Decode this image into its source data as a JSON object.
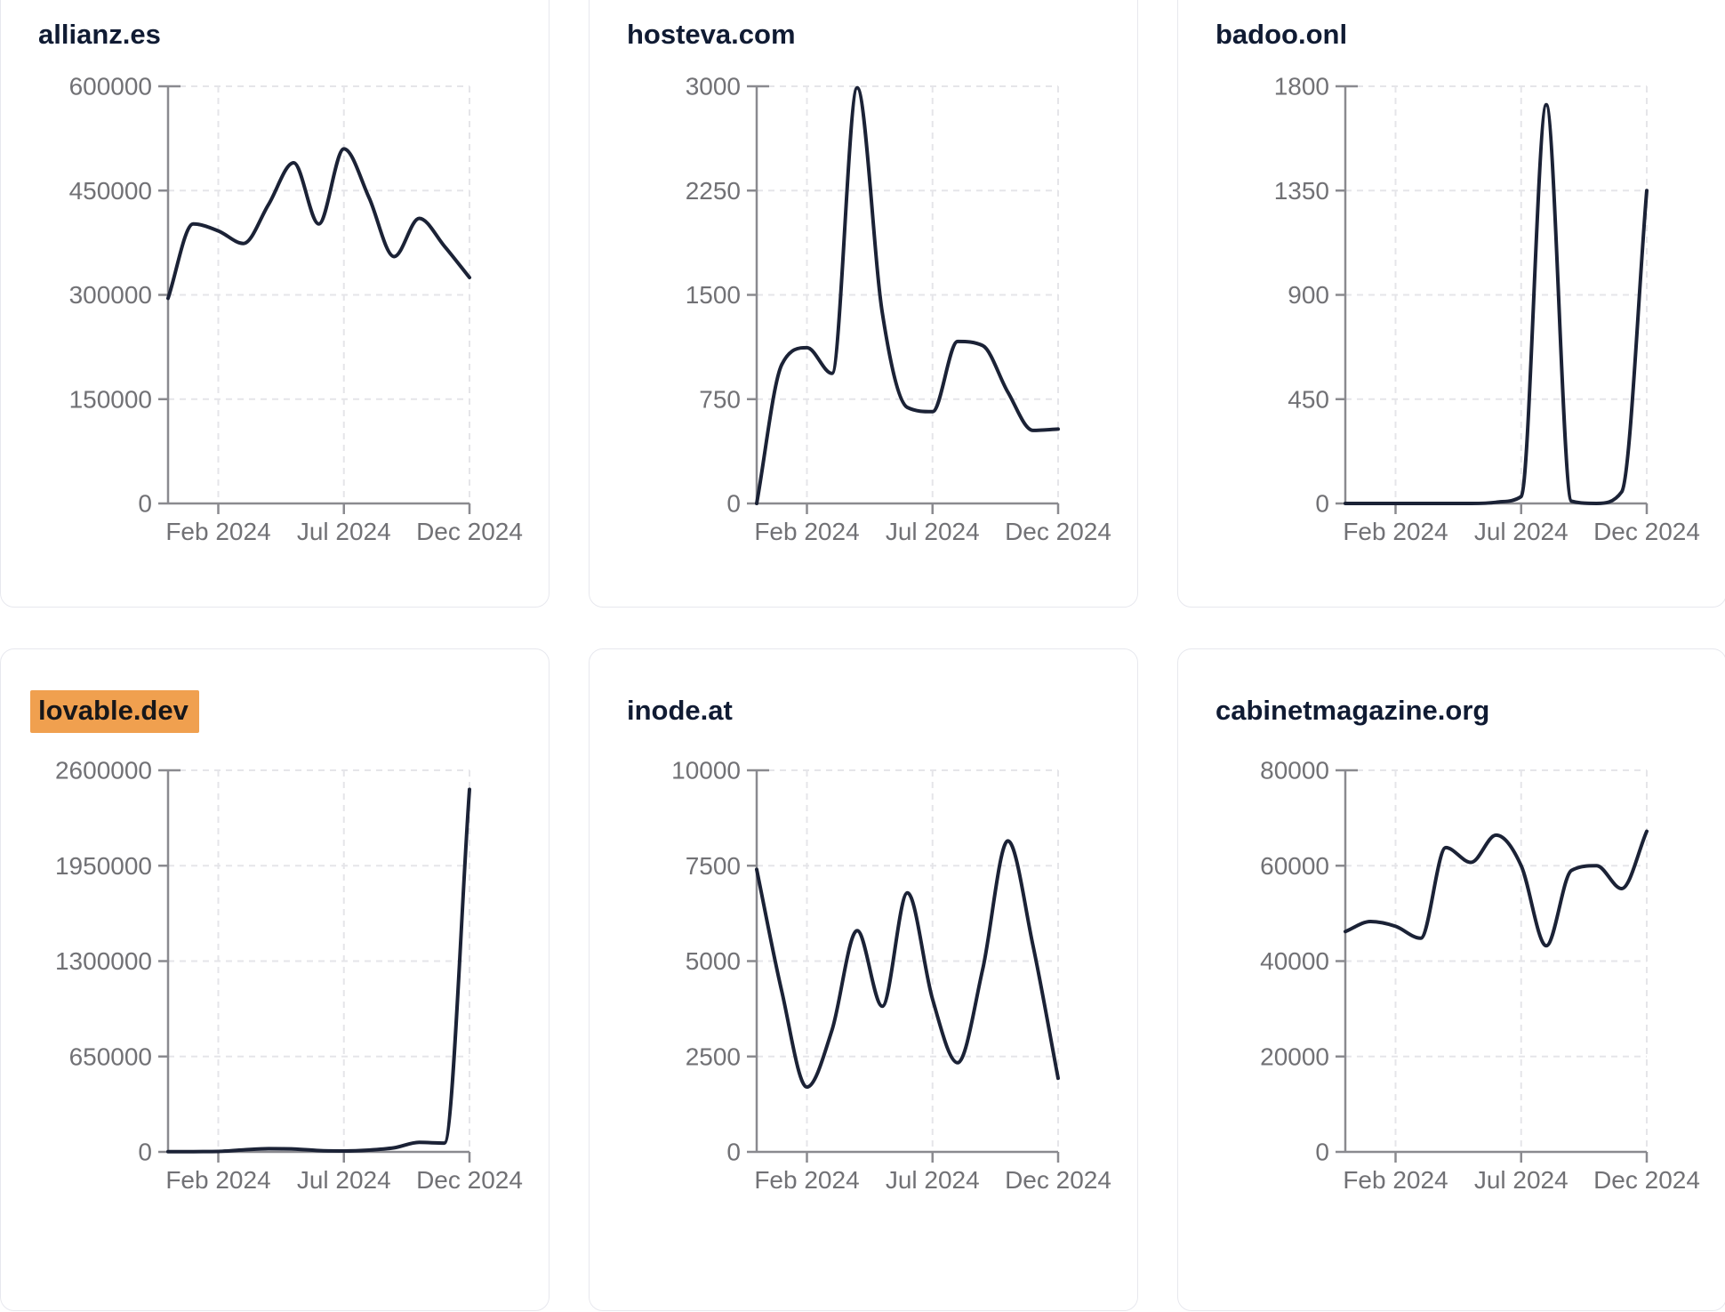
{
  "theme": {
    "background": "#ffffff",
    "card_border_color": "#e7e8ee",
    "title_color": "#101b33",
    "highlight_color": "#f0a04f",
    "highlight_text_color": "#17171a",
    "line_color": "#1b2236",
    "axis_color": "#8a8a8f",
    "tick_label_color": "#717175",
    "gridline_color": "#e5e5e9"
  },
  "chart_data": [
    {
      "type": "line",
      "title": "allianz.es",
      "highlighted": false,
      "x": [
        "Dec 2023",
        "Jan 2024",
        "Feb 2024",
        "Mar 2024",
        "Apr 2024",
        "May 2024",
        "Jun 2024",
        "Jul 2024",
        "Aug 2024",
        "Sep 2024",
        "Oct 2024",
        "Nov 2024",
        "Dec 2024"
      ],
      "values": [
        295000,
        402000,
        392000,
        374000,
        430000,
        490000,
        402000,
        510000,
        440000,
        355000,
        410000,
        370000,
        325000
      ],
      "y_ticks": [
        0,
        150000,
        300000,
        450000,
        600000
      ],
      "ylim": [
        0,
        600000
      ],
      "x_tick_labels": [
        "Feb 2024",
        "Jul 2024",
        "Dec 2024"
      ],
      "x_tick_indices": [
        2,
        7,
        12
      ],
      "grid": true,
      "legend": "none"
    },
    {
      "type": "line",
      "title": "hosteva.com",
      "highlighted": false,
      "x": [
        "Dec 2023",
        "Jan 2024",
        "Feb 2024",
        "Mar 2024",
        "Apr 2024",
        "May 2024",
        "Jun 2024",
        "Jul 2024",
        "Aug 2024",
        "Sep 2024",
        "Oct 2024",
        "Nov 2024",
        "Dec 2024"
      ],
      "values": [
        0,
        1000,
        1120,
        935,
        2990,
        1370,
        690,
        660,
        1165,
        1135,
        800,
        525,
        535
      ],
      "y_ticks": [
        0,
        750,
        1500,
        2250,
        3000
      ],
      "ylim": [
        0,
        3000
      ],
      "x_tick_labels": [
        "Feb 2024",
        "Jul 2024",
        "Dec 2024"
      ],
      "x_tick_indices": [
        2,
        7,
        12
      ],
      "grid": true,
      "legend": "none"
    },
    {
      "type": "line",
      "title": "badoo.onl",
      "highlighted": false,
      "x": [
        "Dec 2023",
        "Jan 2024",
        "Feb 2024",
        "Mar 2024",
        "Apr 2024",
        "May 2024",
        "Jun 2024",
        "Jul 2024",
        "Aug 2024",
        "Sep 2024",
        "Oct 2024",
        "Nov 2024",
        "Dec 2024"
      ],
      "values": [
        0,
        0,
        0,
        0,
        0,
        0,
        5,
        30,
        1720,
        10,
        0,
        50,
        1350
      ],
      "y_ticks": [
        0,
        450,
        900,
        1350,
        1800
      ],
      "ylim": [
        0,
        1800
      ],
      "x_tick_labels": [
        "Feb 2024",
        "Jul 2024",
        "Dec 2024"
      ],
      "x_tick_indices": [
        2,
        7,
        12
      ],
      "grid": true,
      "legend": "none"
    },
    {
      "type": "line",
      "title": "lovable.dev",
      "highlighted": true,
      "x": [
        "Dec 2023",
        "Jan 2024",
        "Feb 2024",
        "Mar 2024",
        "Apr 2024",
        "May 2024",
        "Jun 2024",
        "Jul 2024",
        "Aug 2024",
        "Sep 2024",
        "Oct 2024",
        "Nov 2024",
        "Dec 2024"
      ],
      "values": [
        1000,
        2000,
        3000,
        14000,
        22000,
        20000,
        9000,
        6000,
        12000,
        28000,
        65000,
        60000,
        2470000
      ],
      "y_ticks": [
        0,
        650000,
        1300000,
        1950000,
        2600000
      ],
      "ylim": [
        0,
        2600000
      ],
      "x_tick_labels": [
        "Feb 2024",
        "Jul 2024",
        "Dec 2024"
      ],
      "x_tick_indices": [
        2,
        7,
        12
      ],
      "grid": true,
      "legend": "none"
    },
    {
      "type": "line",
      "title": "inode.at",
      "highlighted": false,
      "x": [
        "Dec 2023",
        "Jan 2024",
        "Feb 2024",
        "Mar 2024",
        "Apr 2024",
        "May 2024",
        "Jun 2024",
        "Jul 2024",
        "Aug 2024",
        "Sep 2024",
        "Oct 2024",
        "Nov 2024",
        "Dec 2024"
      ],
      "values": [
        7400,
        4200,
        1700,
        3200,
        5800,
        3815,
        6790,
        4000,
        2335,
        4800,
        8150,
        5400,
        1930
      ],
      "y_ticks": [
        0,
        2500,
        5000,
        7500,
        10000
      ],
      "ylim": [
        0,
        10000
      ],
      "x_tick_labels": [
        "Feb 2024",
        "Jul 2024",
        "Dec 2024"
      ],
      "x_tick_indices": [
        2,
        7,
        12
      ],
      "grid": true,
      "legend": "none"
    },
    {
      "type": "line",
      "title": "cabinetmagazine.org",
      "highlighted": false,
      "x": [
        "Dec 2023",
        "Jan 2024",
        "Feb 2024",
        "Mar 2024",
        "Apr 2024",
        "May 2024",
        "Jun 2024",
        "Jul 2024",
        "Aug 2024",
        "Sep 2024",
        "Oct 2024",
        "Nov 2024",
        "Dec 2024"
      ],
      "values": [
        46200,
        48300,
        47300,
        44800,
        63800,
        60700,
        66400,
        60000,
        43200,
        59000,
        60000,
        55200,
        67200
      ],
      "y_ticks": [
        0,
        20000,
        40000,
        60000,
        80000
      ],
      "ylim": [
        0,
        80000
      ],
      "x_tick_labels": [
        "Feb 2024",
        "Jul 2024",
        "Dec 2024"
      ],
      "x_tick_indices": [
        2,
        7,
        12
      ],
      "grid": true,
      "legend": "none"
    }
  ]
}
